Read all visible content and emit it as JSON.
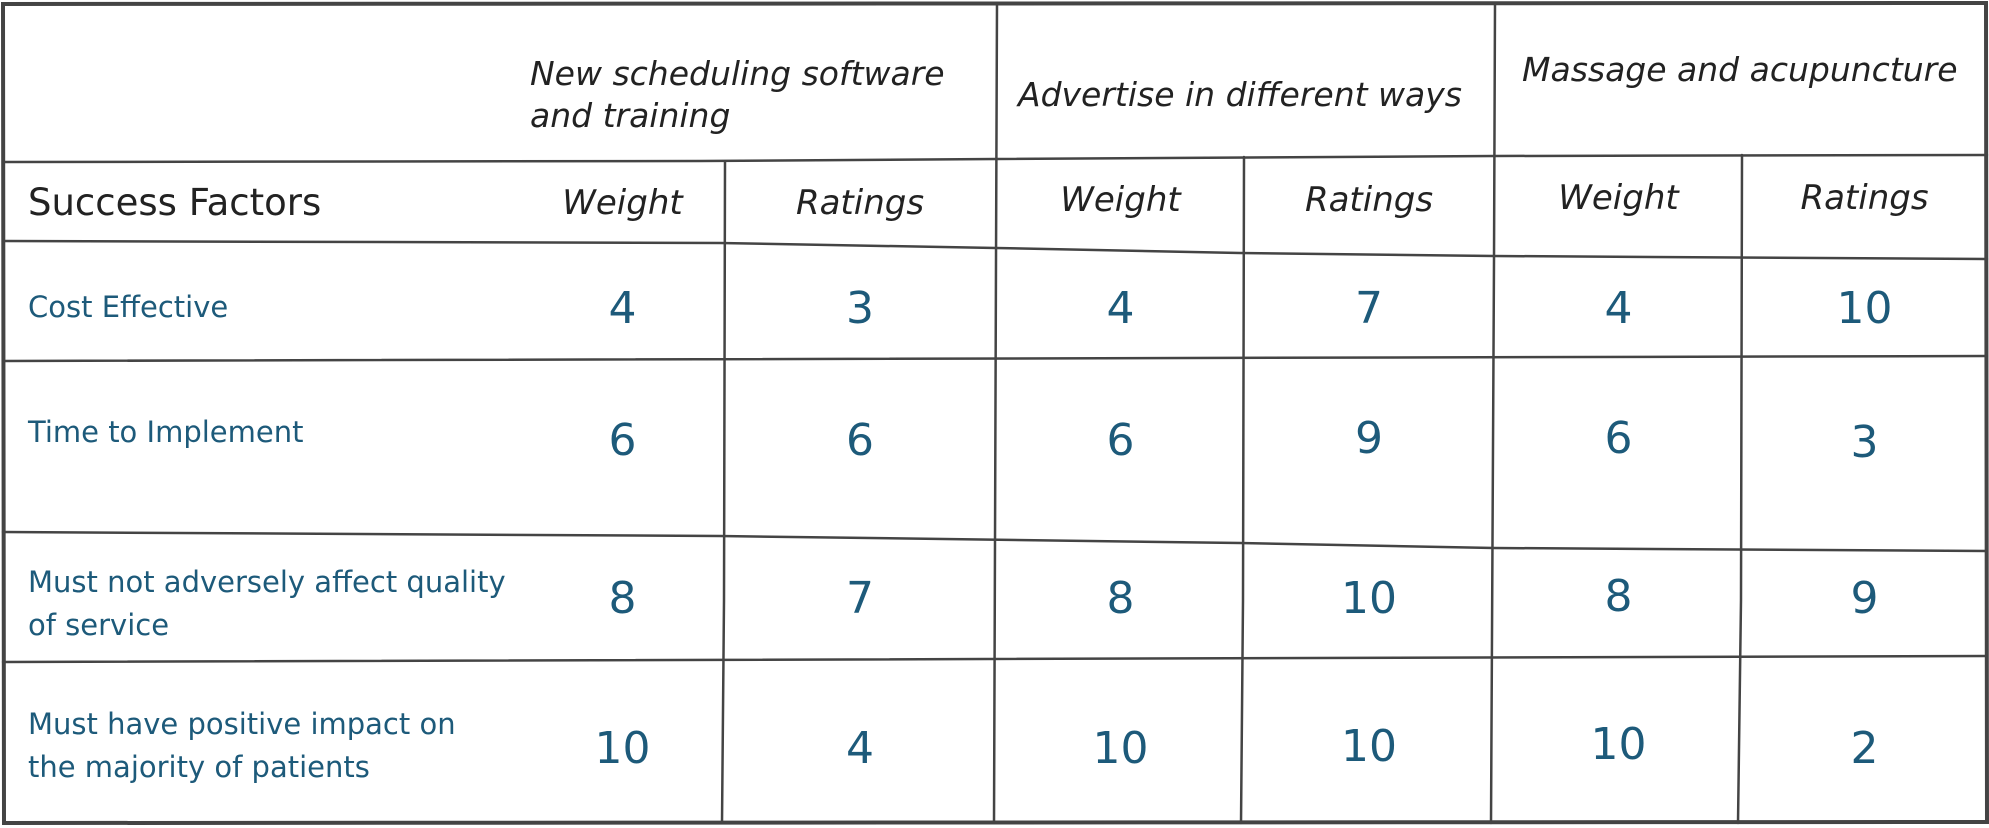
{
  "table": {
    "corner_label": "Success Factors",
    "options": [
      {
        "title": "New scheduling software and training",
        "weight_label": "Weight",
        "rating_label": "Ratings"
      },
      {
        "title": "Advertise in different ways",
        "weight_label": "Weight",
        "rating_label": "Ratings"
      },
      {
        "title": "Massage and acupuncture",
        "weight_label": "Weight",
        "rating_label": "Ratings"
      }
    ],
    "rows": [
      {
        "factor": "Cost Effective",
        "values": [
          "4",
          "3",
          "4",
          "7",
          "4",
          "10"
        ]
      },
      {
        "factor": "Time to Implement",
        "values": [
          "6",
          "6",
          "6",
          "9",
          "6",
          "3"
        ]
      },
      {
        "factor": "Must not adversely affect quality of service",
        "values": [
          "8",
          "7",
          "8",
          "10",
          "8",
          "9"
        ]
      },
      {
        "factor": "Must have positive impact on the majority of patients",
        "values": [
          "10",
          "4",
          "10",
          "10",
          "10",
          "2"
        ]
      }
    ]
  },
  "colors": {
    "ink": "#222222",
    "values": "#1d5a7a",
    "grid": "#444444"
  }
}
